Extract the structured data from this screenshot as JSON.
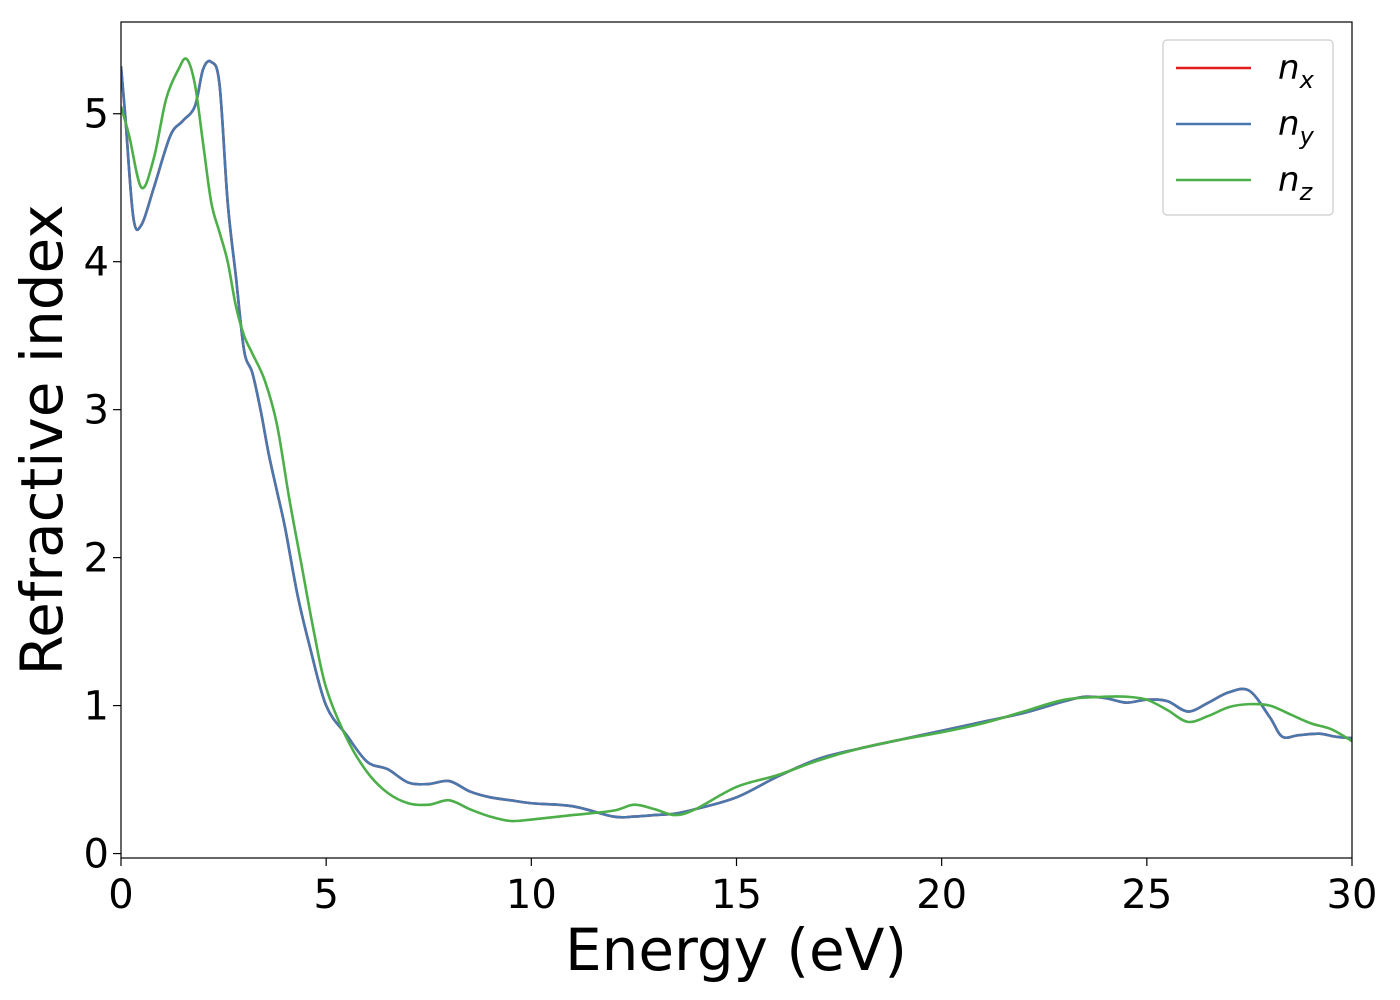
{
  "chart_data": {
    "type": "line",
    "title": "",
    "xlabel": "Energy (eV)",
    "ylabel": "Refractive index",
    "xlim": [
      0,
      30
    ],
    "ylim": [
      -0.03,
      5.62
    ],
    "xticks": [
      0,
      5,
      10,
      15,
      20,
      25,
      30
    ],
    "yticks": [
      0,
      1,
      2,
      3,
      4,
      5
    ],
    "grid": false,
    "legend_position": "top-right",
    "series": [
      {
        "name": "n",
        "subscript": "x",
        "color": "#e41a1c",
        "x": [
          0,
          0.1,
          0.3,
          0.5,
          0.8,
          1.2,
          1.5,
          1.8,
          2.0,
          2.2,
          2.4,
          2.6,
          2.8,
          3.0,
          3.2,
          3.4,
          3.6,
          3.8,
          4.0,
          4.3,
          4.6,
          5.0,
          5.5,
          6.0,
          6.5,
          7.0,
          7.5,
          8.0,
          8.5,
          9.0,
          9.5,
          10.0,
          11.0,
          12.0,
          12.5,
          13.0,
          13.5,
          14.0,
          15.0,
          16.0,
          17.0,
          18.0,
          19.0,
          20.0,
          21.0,
          22.0,
          23.0,
          23.5,
          24.0,
          24.5,
          25.0,
          25.5,
          26.0,
          26.5,
          27.0,
          27.5,
          28.0,
          28.3,
          28.7,
          29.2,
          29.6,
          30.0
        ],
        "y": [
          5.32,
          5.0,
          4.3,
          4.25,
          4.5,
          4.85,
          4.95,
          5.05,
          5.3,
          5.35,
          5.2,
          4.4,
          3.9,
          3.4,
          3.25,
          3.0,
          2.7,
          2.45,
          2.2,
          1.75,
          1.4,
          1.0,
          0.8,
          0.62,
          0.57,
          0.48,
          0.47,
          0.49,
          0.42,
          0.38,
          0.36,
          0.34,
          0.32,
          0.25,
          0.25,
          0.26,
          0.27,
          0.3,
          0.38,
          0.52,
          0.64,
          0.71,
          0.77,
          0.83,
          0.89,
          0.95,
          1.03,
          1.06,
          1.05,
          1.02,
          1.04,
          1.03,
          0.96,
          1.02,
          1.09,
          1.1,
          0.92,
          0.79,
          0.8,
          0.81,
          0.79,
          0.78
        ]
      },
      {
        "name": "n",
        "subscript": "y",
        "color": "#4878ad",
        "x": [
          0,
          0.1,
          0.3,
          0.5,
          0.8,
          1.2,
          1.5,
          1.8,
          2.0,
          2.2,
          2.4,
          2.6,
          2.8,
          3.0,
          3.2,
          3.4,
          3.6,
          3.8,
          4.0,
          4.3,
          4.6,
          5.0,
          5.5,
          6.0,
          6.5,
          7.0,
          7.5,
          8.0,
          8.5,
          9.0,
          9.5,
          10.0,
          11.0,
          12.0,
          12.5,
          13.0,
          13.5,
          14.0,
          15.0,
          16.0,
          17.0,
          18.0,
          19.0,
          20.0,
          21.0,
          22.0,
          23.0,
          23.5,
          24.0,
          24.5,
          25.0,
          25.5,
          26.0,
          26.5,
          27.0,
          27.5,
          28.0,
          28.3,
          28.7,
          29.2,
          29.6,
          30.0
        ],
        "y": [
          5.32,
          5.0,
          4.3,
          4.25,
          4.5,
          4.85,
          4.95,
          5.05,
          5.3,
          5.35,
          5.2,
          4.4,
          3.9,
          3.4,
          3.25,
          3.0,
          2.7,
          2.45,
          2.2,
          1.75,
          1.4,
          1.0,
          0.8,
          0.62,
          0.57,
          0.48,
          0.47,
          0.49,
          0.42,
          0.38,
          0.36,
          0.34,
          0.32,
          0.25,
          0.25,
          0.26,
          0.27,
          0.3,
          0.38,
          0.52,
          0.64,
          0.71,
          0.77,
          0.83,
          0.89,
          0.95,
          1.03,
          1.06,
          1.05,
          1.02,
          1.04,
          1.03,
          0.96,
          1.02,
          1.09,
          1.1,
          0.92,
          0.79,
          0.8,
          0.81,
          0.79,
          0.78
        ]
      },
      {
        "name": "n",
        "subscript": "z",
        "color": "#4daf4a",
        "x": [
          0,
          0.2,
          0.5,
          0.8,
          1.1,
          1.4,
          1.6,
          1.8,
          2.0,
          2.2,
          2.4,
          2.6,
          2.8,
          3.0,
          3.2,
          3.5,
          3.8,
          4.1,
          4.4,
          4.7,
          5.0,
          5.5,
          6.0,
          6.5,
          7.0,
          7.5,
          8.0,
          8.5,
          9.0,
          9.5,
          10.0,
          11.0,
          12.0,
          12.5,
          13.0,
          13.5,
          14.0,
          15.0,
          16.0,
          17.0,
          18.0,
          19.0,
          20.0,
          21.0,
          22.0,
          23.0,
          24.0,
          24.5,
          25.0,
          25.5,
          26.0,
          26.5,
          27.0,
          27.5,
          28.0,
          28.5,
          29.0,
          29.5,
          30.0
        ],
        "y": [
          5.05,
          4.85,
          4.5,
          4.7,
          5.1,
          5.3,
          5.37,
          5.2,
          4.8,
          4.4,
          4.2,
          4.0,
          3.7,
          3.5,
          3.38,
          3.2,
          2.9,
          2.4,
          1.95,
          1.5,
          1.12,
          0.78,
          0.55,
          0.41,
          0.34,
          0.33,
          0.36,
          0.3,
          0.25,
          0.22,
          0.23,
          0.26,
          0.29,
          0.33,
          0.3,
          0.26,
          0.3,
          0.45,
          0.53,
          0.63,
          0.71,
          0.77,
          0.82,
          0.88,
          0.96,
          1.04,
          1.06,
          1.06,
          1.04,
          0.97,
          0.89,
          0.93,
          0.99,
          1.01,
          1.0,
          0.94,
          0.88,
          0.84,
          0.76
        ]
      }
    ]
  }
}
